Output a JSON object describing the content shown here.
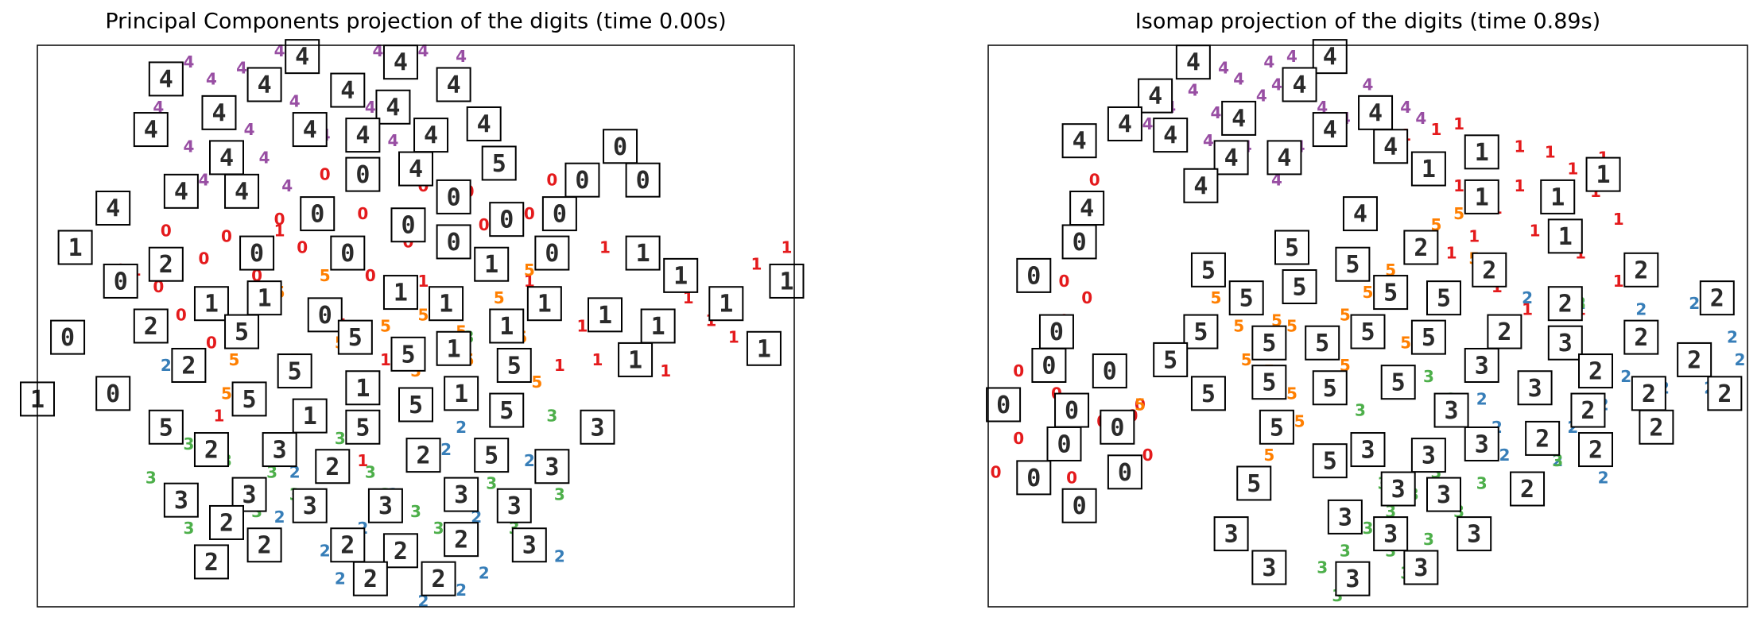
{
  "chart_data": [
    {
      "type": "scatter",
      "title": "Principal Components projection of the digits (time 0.00s)",
      "xlim": [
        0,
        1
      ],
      "ylim": [
        0,
        1
      ],
      "series": [
        {
          "name": "0",
          "color": "#e41a1c",
          "x": [
            0.38,
            0.32,
            0.25,
            0.22,
            0.16,
            0.19,
            0.23,
            0.43,
            0.49,
            0.57,
            0.59,
            0.65,
            0.68,
            0.77,
            0.29,
            0.35,
            0.51,
            0.11,
            0.17,
            0.44
          ],
          "y": [
            0.77,
            0.69,
            0.66,
            0.62,
            0.57,
            0.52,
            0.47,
            0.7,
            0.65,
            0.74,
            0.68,
            0.7,
            0.76,
            0.83,
            0.59,
            0.64,
            0.75,
            0.6,
            0.67,
            0.59
          ]
        },
        {
          "name": "1",
          "color": "#e41a1c",
          "x": [
            0.75,
            0.81,
            0.86,
            0.89,
            0.95,
            0.99,
            0.72,
            0.74,
            0.83,
            0.92,
            0.69,
            0.65,
            0.59,
            0.51,
            0.4,
            0.46,
            0.43,
            0.32,
            0.13,
            0.24
          ],
          "y": [
            0.64,
            0.61,
            0.55,
            0.51,
            0.61,
            0.64,
            0.5,
            0.44,
            0.42,
            0.48,
            0.43,
            0.58,
            0.6,
            0.58,
            0.52,
            0.44,
            0.26,
            0.67,
            0.6,
            0.34
          ]
        },
        {
          "name": "2",
          "color": "#377eb8",
          "x": [
            0.17,
            0.32,
            0.38,
            0.43,
            0.49,
            0.51,
            0.56,
            0.59,
            0.34,
            0.44,
            0.54,
            0.56,
            0.47,
            0.58,
            0.69,
            0.65,
            0.4,
            0.29
          ],
          "y": [
            0.43,
            0.16,
            0.1,
            0.14,
            0.08,
            0.01,
            0.03,
            0.06,
            0.24,
            0.3,
            0.28,
            0.32,
            0.2,
            0.16,
            0.09,
            0.26,
            0.05,
            0.12
          ]
        },
        {
          "name": "3",
          "color": "#4daf4a",
          "x": [
            0.15,
            0.2,
            0.25,
            0.31,
            0.34,
            0.4,
            0.44,
            0.5,
            0.56,
            0.6,
            0.68,
            0.69,
            0.57,
            0.2,
            0.29,
            0.46,
            0.37,
            0.63,
            0.53
          ],
          "y": [
            0.23,
            0.29,
            0.26,
            0.24,
            0.2,
            0.3,
            0.24,
            0.17,
            0.2,
            0.22,
            0.34,
            0.2,
            0.48,
            0.14,
            0.17,
            0.2,
            0.34,
            0.14,
            0.14
          ]
        },
        {
          "name": "4",
          "color": "#984ea3",
          "x": [
            0.2,
            0.23,
            0.27,
            0.32,
            0.34,
            0.4,
            0.45,
            0.51,
            0.56,
            0.16,
            0.2,
            0.28,
            0.3,
            0.38,
            0.43,
            0.47,
            0.22,
            0.33,
            0.44,
            0.54
          ],
          "y": [
            0.97,
            0.94,
            0.96,
            0.99,
            0.9,
            0.93,
            0.99,
            0.99,
            0.98,
            0.89,
            0.82,
            0.85,
            0.8,
            0.84,
            0.82,
            0.83,
            0.76,
            0.75,
            0.89,
            0.91
          ]
        },
        {
          "name": "5",
          "color": "#ff7f00",
          "x": [
            0.32,
            0.37,
            0.26,
            0.29,
            0.4,
            0.46,
            0.5,
            0.56,
            0.61,
            0.65,
            0.66,
            0.34,
            0.44,
            0.25,
            0.51,
            0.38,
            0.64,
            0.57
          ],
          "y": [
            0.56,
            0.53,
            0.44,
            0.39,
            0.47,
            0.5,
            0.42,
            0.49,
            0.55,
            0.6,
            0.4,
            0.44,
            0.37,
            0.38,
            0.52,
            0.59,
            0.48,
            0.44
          ]
        }
      ],
      "thumbnails": {
        "x": [
          0.35,
          0.48,
          0.17,
          0.3,
          0.41,
          0.55,
          0.24,
          0.47,
          0.15,
          0.36,
          0.43,
          0.52,
          0.59,
          0.25,
          0.77,
          0.61,
          0.43,
          0.5,
          0.72,
          0.8,
          0.19,
          0.27,
          0.55,
          0.1,
          0.37,
          0.49,
          0.62,
          0.69,
          0.05,
          0.29,
          0.41,
          0.55,
          0.68,
          0.8,
          0.17,
          0.11,
          0.3,
          0.6,
          0.85,
          0.99,
          0.23,
          0.48,
          0.54,
          0.91,
          0.38,
          0.15,
          0.27,
          0.67,
          0.75,
          0.82,
          0.04,
          0.42,
          0.62,
          0.49,
          0.55,
          0.96,
          0.79,
          0.2,
          0.34,
          0.63,
          0.0,
          0.1,
          0.43,
          0.56,
          0.28,
          0.5,
          0.36,
          0.62,
          0.17,
          0.43,
          0.74,
          0.23,
          0.32,
          0.51,
          0.6,
          0.39,
          0.68,
          0.28,
          0.19,
          0.56,
          0.63,
          0.36,
          0.46,
          0.25,
          0.56,
          0.3,
          0.41,
          0.65,
          0.48,
          0.23,
          0.44,
          0.53
        ],
        "y": [
          0.98,
          0.97,
          0.94,
          0.93,
          0.92,
          0.93,
          0.88,
          0.89,
          0.85,
          0.85,
          0.84,
          0.84,
          0.86,
          0.8,
          0.82,
          0.79,
          0.77,
          0.78,
          0.76,
          0.76,
          0.74,
          0.74,
          0.73,
          0.71,
          0.7,
          0.68,
          0.69,
          0.7,
          0.64,
          0.63,
          0.63,
          0.65,
          0.63,
          0.63,
          0.61,
          0.58,
          0.55,
          0.61,
          0.59,
          0.58,
          0.54,
          0.56,
          0.54,
          0.54,
          0.52,
          0.5,
          0.49,
          0.54,
          0.52,
          0.5,
          0.48,
          0.48,
          0.5,
          0.45,
          0.46,
          0.46,
          0.44,
          0.43,
          0.42,
          0.43,
          0.37,
          0.38,
          0.39,
          0.38,
          0.37,
          0.36,
          0.34,
          0.35,
          0.32,
          0.32,
          0.32,
          0.28,
          0.28,
          0.27,
          0.27,
          0.25,
          0.25,
          0.2,
          0.19,
          0.2,
          0.18,
          0.18,
          0.18,
          0.15,
          0.12,
          0.11,
          0.11,
          0.11,
          0.1,
          0.08,
          0.05,
          0.05
        ],
        "labels": [
          "4",
          "4",
          "4",
          "4",
          "4",
          "4",
          "4",
          "4",
          "4",
          "4",
          "4",
          "4",
          "4",
          "4",
          "0",
          "5",
          "0",
          "4",
          "0",
          "0",
          "4",
          "4",
          "0",
          "4",
          "0",
          "0",
          "0",
          "0",
          "1",
          "0",
          "0",
          "0",
          "0",
          "1",
          "2",
          "0",
          "1",
          "1",
          "1",
          "1",
          "1",
          "1",
          "1",
          "1",
          "0",
          "2",
          "5",
          "1",
          "1",
          "1",
          "0",
          "5",
          "1",
          "5",
          "1",
          "1",
          "1",
          "2",
          "5",
          "5",
          "1",
          "0",
          "1",
          "1",
          "5",
          "5",
          "1",
          "5",
          "5",
          "5",
          "3",
          "2",
          "3",
          "2",
          "5",
          "2",
          "3",
          "3",
          "3",
          "3",
          "3",
          "3",
          "3",
          "2",
          "2",
          "2",
          "2",
          "3",
          "2",
          "2",
          "2",
          "2"
        ]
      }
    },
    {
      "type": "scatter",
      "title": "Isomap projection of the digits (time 0.89s)",
      "xlim": [
        0,
        1
      ],
      "ylim": [
        0,
        1
      ],
      "series": [
        {
          "name": "0",
          "color": "#e41a1c",
          "x": [
            0.14,
            0.1,
            0.07,
            0.09,
            0.12,
            0.1,
            0.07,
            0.04,
            0.04,
            0.01,
            0.15,
            0.19,
            0.21,
            0.2,
            0.1,
            0.13,
            0.08,
            0.11
          ],
          "y": [
            0.76,
            0.51,
            0.42,
            0.38,
            0.36,
            0.28,
            0.24,
            0.3,
            0.42,
            0.24,
            0.33,
            0.34,
            0.27,
            0.36,
            0.58,
            0.55,
            0.46,
            0.23
          ]
        },
        {
          "name": "1",
          "color": "#e41a1c",
          "x": [
            0.55,
            0.59,
            0.62,
            0.7,
            0.74,
            0.77,
            0.8,
            0.83,
            0.7,
            0.67,
            0.64,
            0.61,
            0.72,
            0.78,
            0.83,
            0.71,
            0.67,
            0.78,
            0.62,
            0.81
          ],
          "y": [
            0.84,
            0.85,
            0.86,
            0.82,
            0.81,
            0.78,
            0.74,
            0.69,
            0.75,
            0.71,
            0.66,
            0.63,
            0.67,
            0.63,
            0.58,
            0.53,
            0.57,
            0.53,
            0.75,
            0.8
          ]
        },
        {
          "name": "2",
          "color": "#377eb8",
          "x": [
            0.71,
            0.78,
            0.86,
            0.93,
            0.98,
            0.99,
            0.92,
            0.89,
            0.84,
            0.81,
            0.77,
            0.72,
            0.68,
            0.65,
            0.71,
            0.81,
            0.75,
            0.95,
            0.87,
            0.67
          ],
          "y": [
            0.55,
            0.54,
            0.53,
            0.54,
            0.48,
            0.44,
            0.44,
            0.39,
            0.41,
            0.36,
            0.32,
            0.3,
            0.27,
            0.37,
            0.37,
            0.23,
            0.26,
            0.39,
            0.48,
            0.32
          ]
        },
        {
          "name": "3",
          "color": "#4daf4a",
          "x": [
            0.58,
            0.61,
            0.62,
            0.64,
            0.59,
            0.56,
            0.53,
            0.5,
            0.47,
            0.44,
            0.46,
            0.55,
            0.62,
            0.65,
            0.58,
            0.52,
            0.78,
            0.75,
            0.49,
            0.53
          ],
          "y": [
            0.41,
            0.37,
            0.33,
            0.28,
            0.24,
            0.2,
            0.17,
            0.14,
            0.1,
            0.07,
            0.02,
            0.06,
            0.17,
            0.22,
            0.12,
            0.22,
            0.54,
            0.26,
            0.35,
            0.1
          ]
        },
        {
          "name": "4",
          "color": "#984ea3",
          "x": [
            0.24,
            0.27,
            0.3,
            0.33,
            0.36,
            0.38,
            0.4,
            0.29,
            0.34,
            0.41,
            0.47,
            0.5,
            0.55,
            0.21,
            0.37,
            0.32,
            0.44,
            0.38,
            0.57,
            0.31
          ],
          "y": [
            0.89,
            0.92,
            0.88,
            0.94,
            0.91,
            0.93,
            0.98,
            0.83,
            0.82,
            0.82,
            0.87,
            0.93,
            0.89,
            0.86,
            0.97,
            0.85,
            0.89,
            0.76,
            0.87,
            0.96
          ]
        },
        {
          "name": "5",
          "color": "#ff7f00",
          "x": [
            0.3,
            0.33,
            0.34,
            0.37,
            0.4,
            0.41,
            0.37,
            0.44,
            0.47,
            0.5,
            0.53,
            0.56,
            0.59,
            0.62,
            0.64,
            0.4,
            0.47,
            0.2,
            0.55,
            0.38
          ],
          "y": [
            0.55,
            0.5,
            0.44,
            0.42,
            0.38,
            0.33,
            0.27,
            0.48,
            0.52,
            0.56,
            0.6,
            0.65,
            0.68,
            0.7,
            0.62,
            0.5,
            0.43,
            0.36,
            0.47,
            0.51
          ]
        }
      ],
      "thumbnails": {
        "x": [
          0.27,
          0.45,
          0.22,
          0.41,
          0.18,
          0.33,
          0.51,
          0.12,
          0.24,
          0.45,
          0.53,
          0.32,
          0.39,
          0.65,
          0.58,
          0.81,
          0.28,
          0.65,
          0.75,
          0.13,
          0.49,
          0.76,
          0.12,
          0.4,
          0.57,
          0.48,
          0.86,
          0.29,
          0.06,
          0.66,
          0.41,
          0.34,
          0.53,
          0.6,
          0.96,
          0.76,
          0.5,
          0.28,
          0.68,
          0.09,
          0.58,
          0.86,
          0.37,
          0.44,
          0.76,
          0.93,
          0.24,
          0.65,
          0.8,
          0.08,
          0.16,
          0.37,
          0.54,
          0.72,
          0.97,
          0.87,
          0.45,
          0.29,
          0.02,
          0.11,
          0.61,
          0.79,
          0.17,
          0.38,
          0.88,
          0.73,
          0.65,
          0.1,
          0.5,
          0.8,
          0.58,
          0.45,
          0.18,
          0.35,
          0.06,
          0.71,
          0.54,
          0.6,
          0.12,
          0.47,
          0.53,
          0.64,
          0.32,
          0.57,
          0.37,
          0.48
        ],
        "y": [
          0.97,
          0.98,
          0.91,
          0.93,
          0.86,
          0.87,
          0.88,
          0.83,
          0.84,
          0.85,
          0.82,
          0.8,
          0.8,
          0.81,
          0.78,
          0.77,
          0.75,
          0.73,
          0.73,
          0.71,
          0.7,
          0.66,
          0.65,
          0.64,
          0.64,
          0.61,
          0.6,
          0.6,
          0.59,
          0.6,
          0.57,
          0.55,
          0.56,
          0.55,
          0.55,
          0.54,
          0.49,
          0.49,
          0.49,
          0.49,
          0.48,
          0.48,
          0.47,
          0.47,
          0.47,
          0.44,
          0.44,
          0.43,
          0.42,
          0.43,
          0.42,
          0.4,
          0.4,
          0.39,
          0.38,
          0.38,
          0.39,
          0.38,
          0.36,
          0.35,
          0.35,
          0.35,
          0.32,
          0.32,
          0.32,
          0.3,
          0.29,
          0.29,
          0.28,
          0.28,
          0.27,
          0.26,
          0.24,
          0.22,
          0.23,
          0.21,
          0.21,
          0.2,
          0.18,
          0.16,
          0.13,
          0.13,
          0.13,
          0.07,
          0.07,
          0.05
        ],
        "labels": [
          "4",
          "4",
          "4",
          "4",
          "4",
          "4",
          "4",
          "4",
          "4",
          "4",
          "4",
          "4",
          "4",
          "1",
          "1",
          "1",
          "4",
          "1",
          "1",
          "4",
          "4",
          "1",
          "0",
          "5",
          "2",
          "5",
          "2",
          "5",
          "0",
          "2",
          "5",
          "5",
          "5",
          "5",
          "2",
          "2",
          "5",
          "5",
          "2",
          "0",
          "5",
          "2",
          "5",
          "5",
          "3",
          "2",
          "5",
          "3",
          "2",
          "0",
          "0",
          "5",
          "5",
          "3",
          "2",
          "2",
          "5",
          "5",
          "0",
          "0",
          "3",
          "2",
          "0",
          "5",
          "2",
          "2",
          "3",
          "0",
          "3",
          "2",
          "3",
          "5",
          "0",
          "5",
          "0",
          "2",
          "3",
          "3",
          "0",
          "3",
          "3",
          "3",
          "3",
          "3",
          "3",
          "3"
        ]
      }
    }
  ]
}
